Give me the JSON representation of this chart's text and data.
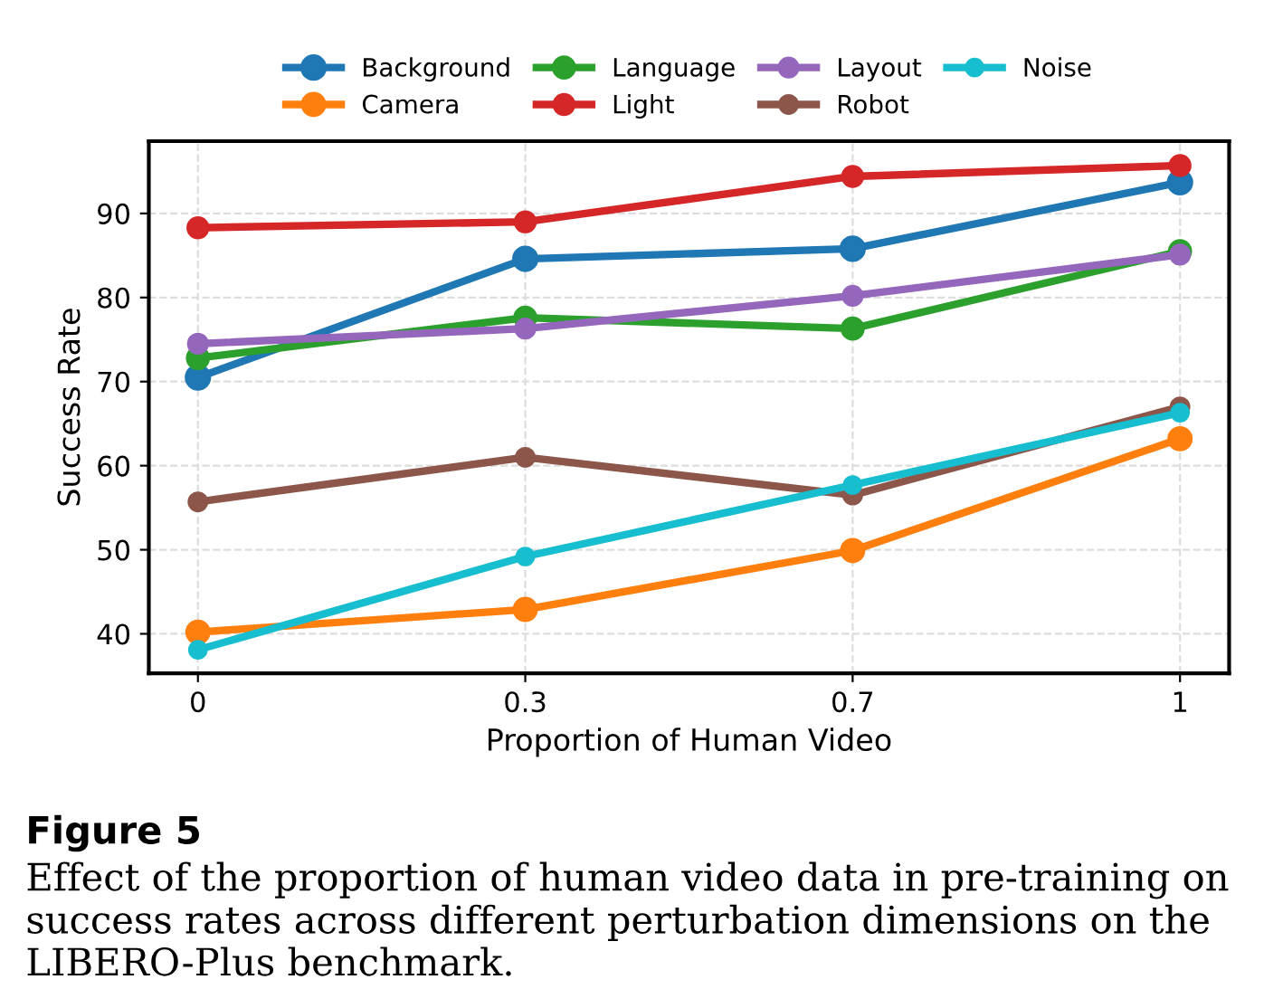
{
  "chart_data": {
    "type": "line",
    "xlabel": "Proportion of Human Video",
    "ylabel": "Success Rate",
    "categories": [
      "0",
      "0.3",
      "0.7",
      "1"
    ],
    "series": [
      {
        "name": "Background",
        "color": "#1f77b4",
        "values": [
          70.5,
          84.6,
          85.8,
          93.7
        ]
      },
      {
        "name": "Camera",
        "color": "#ff7f0e",
        "values": [
          40.2,
          42.9,
          49.9,
          63.2
        ]
      },
      {
        "name": "Language",
        "color": "#2ca02c",
        "values": [
          72.8,
          77.6,
          76.3,
          85.5
        ]
      },
      {
        "name": "Light",
        "color": "#d62728",
        "values": [
          88.3,
          89.0,
          94.4,
          95.7
        ]
      },
      {
        "name": "Layout",
        "color": "#9467bd",
        "values": [
          74.5,
          76.3,
          80.2,
          85.1
        ]
      },
      {
        "name": "Robot",
        "color": "#8c564b",
        "values": [
          55.7,
          61.0,
          56.5,
          67.0
        ]
      },
      {
        "name": "Noise",
        "color": "#17becf",
        "values": [
          38.1,
          49.2,
          57.7,
          66.3
        ]
      }
    ],
    "ylim": [
      35.3,
      98.6
    ],
    "yticks": [
      40,
      50,
      60,
      70,
      80,
      90
    ],
    "grid": true,
    "legend": "top",
    "marker": "circle",
    "line_style": "solid",
    "annotations": [
      "Figure 5",
      "Effect of the proportion of human video data in pre-training on success rates across different perturbation dimensions on the LIBERO-Plus benchmark."
    ]
  }
}
